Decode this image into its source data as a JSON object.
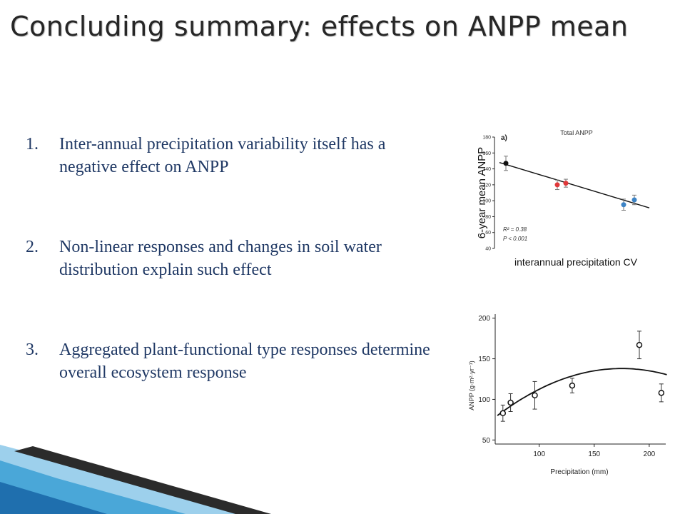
{
  "slide": {
    "title": "Concluding summary: effects on ANPP mean",
    "points": [
      {
        "num": "1.",
        "text": "Inter-annual precipitation variability itself has a negative effect on ANPP"
      },
      {
        "num": "2.",
        "text": "Non-linear responses and changes in soil water distribution explain such effect"
      },
      {
        "num": "3.",
        "text": "Aggregated plant-functional type responses determine overall ecosystem response"
      }
    ]
  },
  "chart_data": [
    {
      "type": "scatter",
      "panel_label": "a)",
      "title": "Total ANPP",
      "xlabel": "interannual precipitation CV",
      "ylabel": "6-year mean ANPP",
      "ylim": [
        40,
        180
      ],
      "yticks": [
        "180",
        "160",
        "140",
        "120",
        "100",
        "80",
        "60",
        "40"
      ],
      "points": [
        {
          "x": 0,
          "y": 147,
          "err": 9,
          "color": "#111111"
        },
        {
          "x": 2.4,
          "y": 120,
          "err": 6,
          "color": "#e0383a"
        },
        {
          "x": 2.8,
          "y": 122,
          "err": 5,
          "color": "#e0383a"
        },
        {
          "x": 5.5,
          "y": 95,
          "err": 7,
          "color": "#3d84c6"
        },
        {
          "x": 6.0,
          "y": 101,
          "err": 6,
          "color": "#3d84c6"
        }
      ],
      "fit_line": [
        [
          -0.3,
          148
        ],
        [
          6.7,
          91
        ]
      ],
      "stats": {
        "r2": "R² = 0.38",
        "p": "P < 0.001"
      }
    },
    {
      "type": "scatter",
      "xlabel": "Precipitation (mm)",
      "ylabel": "ANPP (g·m²·yr⁻¹)",
      "xlim": [
        60,
        215
      ],
      "ylim": [
        45,
        205
      ],
      "xticks": [
        "100",
        "150",
        "200"
      ],
      "yticks": [
        "200",
        "150",
        "100",
        "50"
      ],
      "points": [
        {
          "x": 67,
          "y": 83,
          "err": 10
        },
        {
          "x": 74,
          "y": 96,
          "err": 11
        },
        {
          "x": 96,
          "y": 105,
          "err": 17
        },
        {
          "x": 130,
          "y": 117,
          "err": 9
        },
        {
          "x": 191,
          "y": 167,
          "err": 17
        },
        {
          "x": 211,
          "y": 108,
          "err": 11
        }
      ],
      "curve": {
        "x_min": 62,
        "x_max": 216,
        "peak_x": 175,
        "peak_y": 138,
        "at_x0": 60,
        "at_y0": 78
      }
    }
  ]
}
